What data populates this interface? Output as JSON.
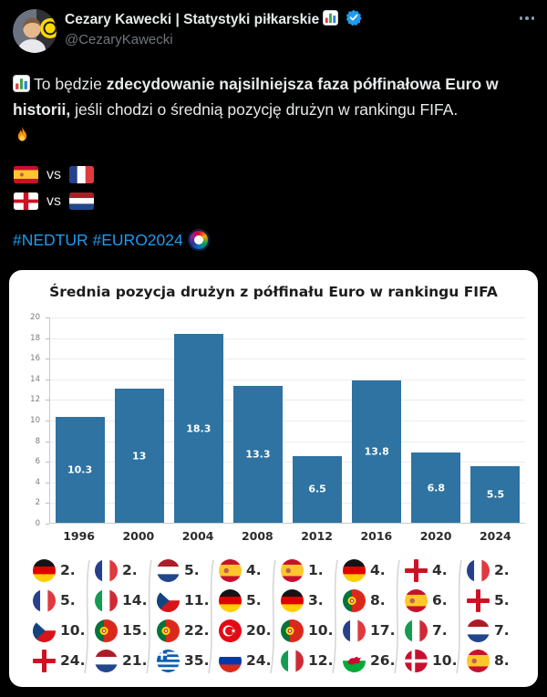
{
  "colors": {
    "page_bg": "#000000",
    "text_primary": "#e7e9ea",
    "text_secondary": "#71767b",
    "link_blue": "#1d9bf0",
    "verified_blue": "#1d9bf0",
    "card_bg": "#ffffff",
    "bar_blue": "#2E73A1"
  },
  "header": {
    "name": "Cezary Kawecki | Statystyki piłkarskie",
    "name_icon": "bar-chart-emoji",
    "verified_icon": "verified-badge",
    "handle": "@CezaryKawecki",
    "more_icon": "more-dots"
  },
  "tweet": {
    "lead_icon": "bar-chart-emoji",
    "segments": [
      {
        "text": "To będzie ",
        "bold": false
      },
      {
        "text": "zdecydowanie najsilniejsza faza półfinałowa Euro w historii,",
        "bold": true
      },
      {
        "text": " jeśli chodzi o średnią pozycję drużyn w rankingu FIFA.",
        "bold": false
      }
    ],
    "fire_icon": "fire-emoji",
    "matchups": [
      {
        "home": "spain",
        "label": "vs",
        "away": "france"
      },
      {
        "home": "england",
        "label": "vs",
        "away": "netherlands"
      }
    ],
    "hashtags": "#NEDTUR #EURO2024",
    "hashtag_icon": "euro2024-logo"
  },
  "chart_data": {
    "type": "bar",
    "title": "Średnia pozycja drużyn z półfinału Euro w rankingu FIFA",
    "categories": [
      "1996",
      "2000",
      "2004",
      "2008",
      "2012",
      "2016",
      "2020",
      "2024"
    ],
    "values": [
      10.3,
      13,
      18.3,
      13.3,
      6.5,
      13.8,
      6.8,
      5.5
    ],
    "bar_labels": [
      "10.3",
      "13",
      "18.3",
      "13.3",
      "6.5",
      "13.8",
      "6.8",
      "5.5"
    ],
    "ylim": [
      0,
      20
    ],
    "yticks": [
      0,
      2,
      4,
      6,
      8,
      10,
      12,
      14,
      16,
      18,
      20
    ],
    "grid": true,
    "legend": false,
    "bar_color": "#2E73A1",
    "semifinalists_by_year": [
      {
        "year": "1996",
        "teams": [
          {
            "country": "germany",
            "rank": "2."
          },
          {
            "country": "france",
            "rank": "5."
          },
          {
            "country": "czechia",
            "rank": "10."
          },
          {
            "country": "england",
            "rank": "24."
          }
        ]
      },
      {
        "year": "2000",
        "teams": [
          {
            "country": "france",
            "rank": "2."
          },
          {
            "country": "italy",
            "rank": "14."
          },
          {
            "country": "portugal",
            "rank": "15."
          },
          {
            "country": "netherlands",
            "rank": "21."
          }
        ]
      },
      {
        "year": "2004",
        "teams": [
          {
            "country": "netherlands",
            "rank": "5."
          },
          {
            "country": "czechia",
            "rank": "11."
          },
          {
            "country": "portugal",
            "rank": "22."
          },
          {
            "country": "greece",
            "rank": "35."
          }
        ]
      },
      {
        "year": "2008",
        "teams": [
          {
            "country": "spain",
            "rank": "4."
          },
          {
            "country": "germany",
            "rank": "5."
          },
          {
            "country": "turkey",
            "rank": "20."
          },
          {
            "country": "russia",
            "rank": "24."
          }
        ]
      },
      {
        "year": "2012",
        "teams": [
          {
            "country": "spain",
            "rank": "1."
          },
          {
            "country": "germany",
            "rank": "3."
          },
          {
            "country": "portugal",
            "rank": "10."
          },
          {
            "country": "italy",
            "rank": "12."
          }
        ]
      },
      {
        "year": "2016",
        "teams": [
          {
            "country": "germany",
            "rank": "4."
          },
          {
            "country": "portugal",
            "rank": "8."
          },
          {
            "country": "france",
            "rank": "17."
          },
          {
            "country": "wales",
            "rank": "26."
          }
        ]
      },
      {
        "year": "2020",
        "teams": [
          {
            "country": "england",
            "rank": "4."
          },
          {
            "country": "spain",
            "rank": "6."
          },
          {
            "country": "italy",
            "rank": "7."
          },
          {
            "country": "denmark",
            "rank": "10."
          }
        ]
      },
      {
        "year": "2024",
        "teams": [
          {
            "country": "france",
            "rank": "2."
          },
          {
            "country": "england",
            "rank": "5."
          },
          {
            "country": "netherlands",
            "rank": "7."
          },
          {
            "country": "spain",
            "rank": "8."
          }
        ]
      }
    ]
  }
}
